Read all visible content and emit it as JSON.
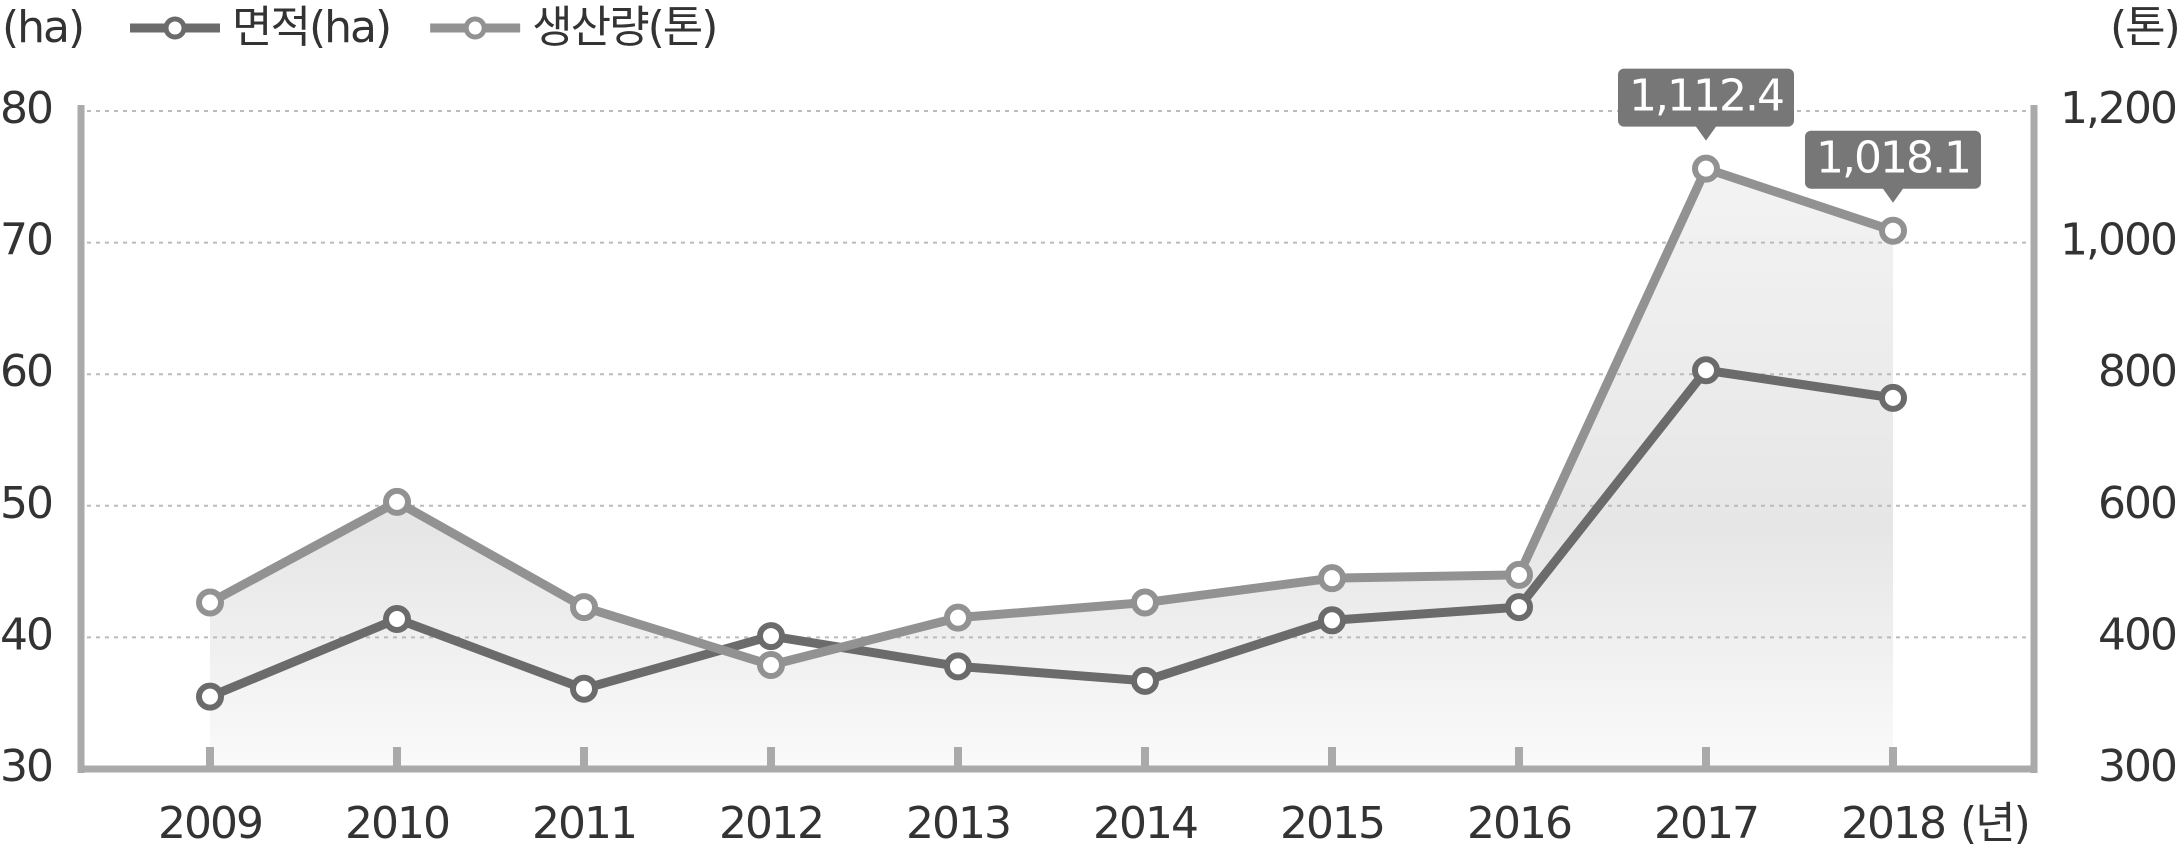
{
  "chart_data": {
    "type": "line",
    "y_label": "(ha)",
    "y2_label": "(톤)",
    "x_label": "(년)",
    "categories": [
      "2009",
      "2010",
      "2011",
      "2012",
      "2013",
      "2014",
      "2015",
      "2016",
      "2017",
      "2018"
    ],
    "series": [
      {
        "name": "면적(ha)",
        "color": "#6b6b6b",
        "values": [
          35.5,
          41.4,
          36.1,
          40.1,
          37.8,
          36.7,
          41.3,
          42.3,
          60.3,
          58.2
        ]
      },
      {
        "name": "생산량(톤)",
        "color": "#929292",
        "axis": "y2",
        "values": [
          453,
          606,
          446,
          379,
          430,
          453,
          490,
          495,
          1112.4,
          1018.1
        ],
        "value_labels": [
          null,
          null,
          null,
          null,
          null,
          null,
          null,
          null,
          "1,112.4",
          "1,018.1"
        ]
      }
    ],
    "ylim": [
      30,
      80
    ],
    "yticks": [
      30,
      40,
      50,
      60,
      70,
      80
    ],
    "y2lim": [
      300,
      1200
    ],
    "y2ticks": [
      300,
      400,
      600,
      800,
      {
        "value": 1000,
        "label": "1,000"
      },
      {
        "value": 1200,
        "label": "1,200"
      }
    ],
    "grid": true
  }
}
